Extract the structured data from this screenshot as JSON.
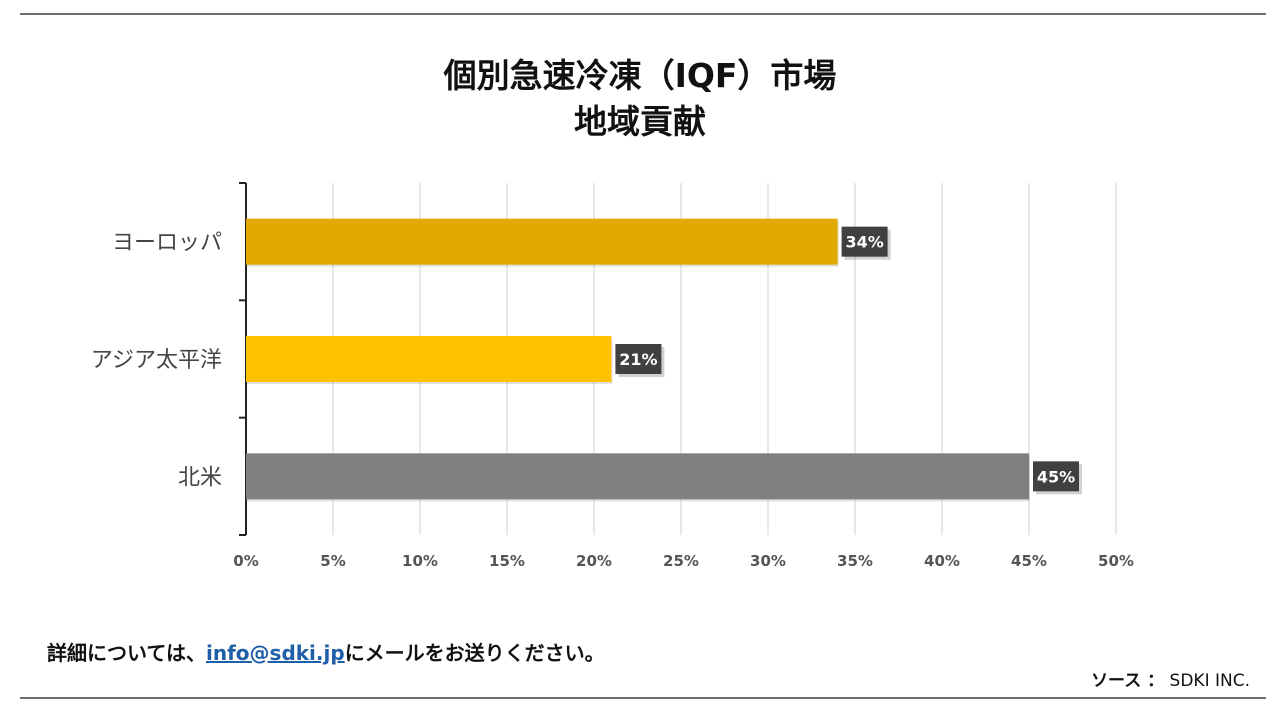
{
  "title_line1": "個別急速冷凍（IQF）市場",
  "title_line2": "地域貢献",
  "footer": {
    "prefix": "詳細については、",
    "email": "info@sdki.jp",
    "suffix": "にメールをお送りください。"
  },
  "source": {
    "label": "ソース ：",
    "value": "SDKI INC."
  },
  "chart_data": {
    "type": "bar",
    "orientation": "horizontal",
    "categories": [
      "ヨーロッパ",
      "アジア太平洋",
      "北米"
    ],
    "values": [
      34,
      21,
      45
    ],
    "data_labels": [
      "34%",
      "21%",
      "45%"
    ],
    "colors": [
      "#e2aa00",
      "#ffc000",
      "#808080"
    ],
    "xlim": [
      0,
      50
    ],
    "xticks": [
      0,
      5,
      10,
      15,
      20,
      25,
      30,
      35,
      40,
      45,
      50
    ],
    "xtick_labels": [
      "0%",
      "5%",
      "10%",
      "15%",
      "20%",
      "25%",
      "30%",
      "35%",
      "40%",
      "45%",
      "50%"
    ],
    "grid": "vertical",
    "legend": "none"
  }
}
